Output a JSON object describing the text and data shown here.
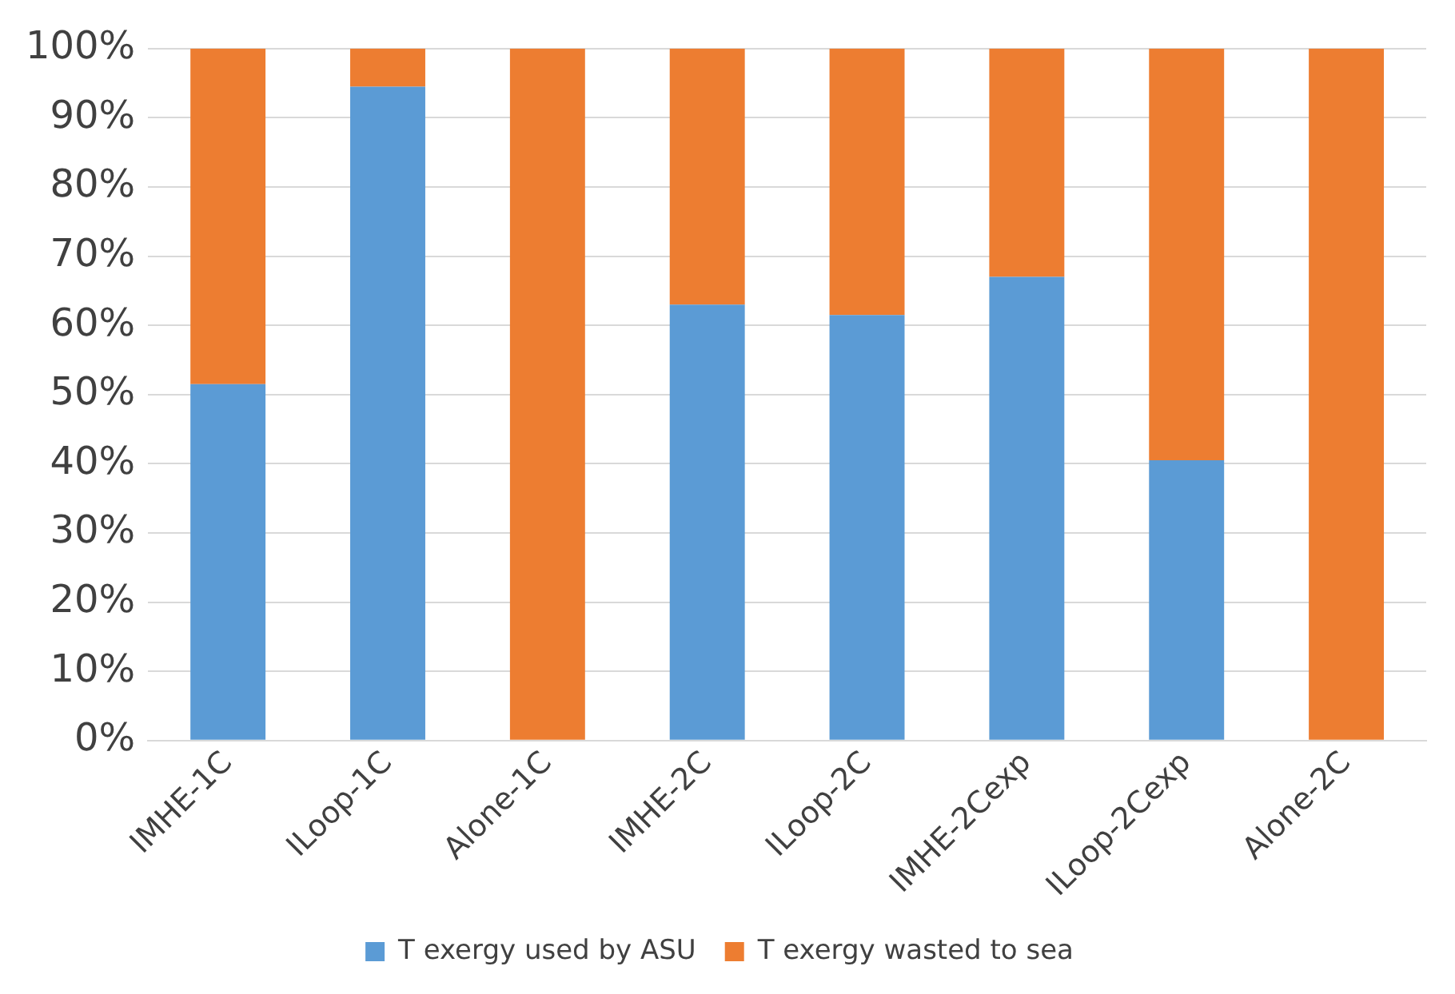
{
  "chart_data": {
    "type": "bar",
    "stacked": true,
    "categories": [
      "IMHE-1C",
      "ILoop-1C",
      "Alone-1C",
      "IMHE-2C",
      "ILoop-2C",
      "IMHE-2Cexp",
      "ILoop-2Cexp",
      "Alone-2C"
    ],
    "series": [
      {
        "name": "T exergy used by ASU",
        "color": "#5b9bd5",
        "values": [
          51.5,
          94.5,
          0,
          63,
          61.5,
          67,
          40.5,
          0
        ]
      },
      {
        "name": "T exergy wasted to sea",
        "color": "#ed7d31",
        "values": [
          48.5,
          5.5,
          100,
          37,
          38.5,
          33,
          59.5,
          100
        ]
      }
    ],
    "ylim": [
      0,
      100
    ],
    "yticks": [
      {
        "value": 0,
        "label": "0%"
      },
      {
        "value": 10,
        "label": "10%"
      },
      {
        "value": 20,
        "label": "20%"
      },
      {
        "value": 30,
        "label": "30%"
      },
      {
        "value": 40,
        "label": "40%"
      },
      {
        "value": 50,
        "label": "50%"
      },
      {
        "value": 60,
        "label": "60%"
      },
      {
        "value": 70,
        "label": "70%"
      },
      {
        "value": 80,
        "label": "80%"
      },
      {
        "value": 90,
        "label": "90%"
      },
      {
        "value": 100,
        "label": "100%"
      }
    ],
    "grid": "y",
    "legend": "bottom"
  }
}
